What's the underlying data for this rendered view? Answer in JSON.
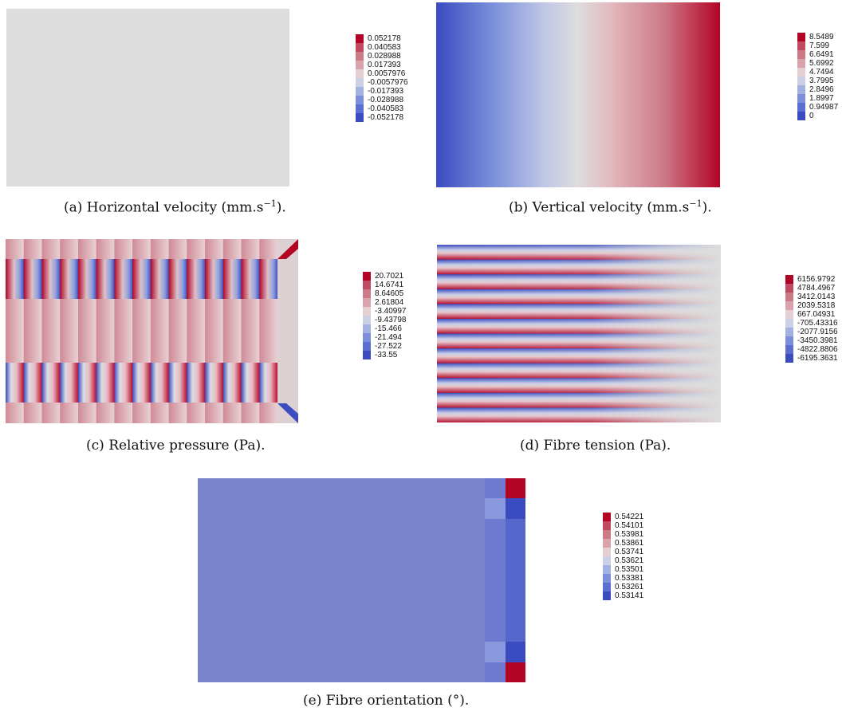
{
  "colormap": [
    "#3b4cc0",
    "#5b6fd3",
    "#7b8fdb",
    "#a3b1e0",
    "#cbd1e4",
    "#e4cfd3",
    "#d9a3ac",
    "#cd7a87",
    "#c04a61",
    "#b40426"
  ],
  "neutral_color": "#dddddd",
  "panels": [
    {
      "id": "a",
      "caption": {
        "prefix": "(a) Horizontal velocity (mm.s",
        "sup": "−1",
        "suffix": ")."
      },
      "legend_ticks": [
        "0.052178",
        "0.040583",
        "0.028988",
        "0.017393",
        "0.0057976",
        "-0.0057976",
        "-0.017393",
        "-0.028988",
        "-0.040583",
        "-0.052178"
      ]
    },
    {
      "id": "b",
      "caption": {
        "prefix": "(b) Vertical velocity (mm.s",
        "sup": "−1",
        "suffix": ")."
      },
      "legend_ticks": [
        "8.5489",
        "7.599",
        "6.6491",
        "5.6992",
        "4.7494",
        "3.7995",
        "2.8496",
        "1.8997",
        "0.94987",
        "0"
      ]
    },
    {
      "id": "c",
      "caption": {
        "prefix": "(c) Relative pressure (Pa).",
        "sup": "",
        "suffix": ""
      },
      "legend_ticks": [
        "20.7021",
        "14.6741",
        "8.64605",
        "2.61804",
        "-3.40997",
        "-9.43798",
        "-15.466",
        "-21.494",
        "-27.522",
        "-33.55"
      ]
    },
    {
      "id": "d",
      "caption": {
        "prefix": "(d) Fibre tension (Pa).",
        "sup": "",
        "suffix": ""
      },
      "legend_ticks": [
        "6156.9792",
        "4784.4967",
        "3412.0143",
        "2039.5318",
        "667.04931",
        "-705.43316",
        "-2077.9156",
        "-3450.3981",
        "-4822.8806",
        "-6195.3631"
      ]
    },
    {
      "id": "e",
      "caption": {
        "prefix": "(e) Fibre orientation (°).",
        "sup": "",
        "suffix": ""
      },
      "legend_ticks": [
        "0.54221",
        "0.54101",
        "0.53981",
        "0.53861",
        "0.53741",
        "0.53621",
        "0.53501",
        "0.53381",
        "0.53261",
        "0.53141"
      ]
    }
  ]
}
